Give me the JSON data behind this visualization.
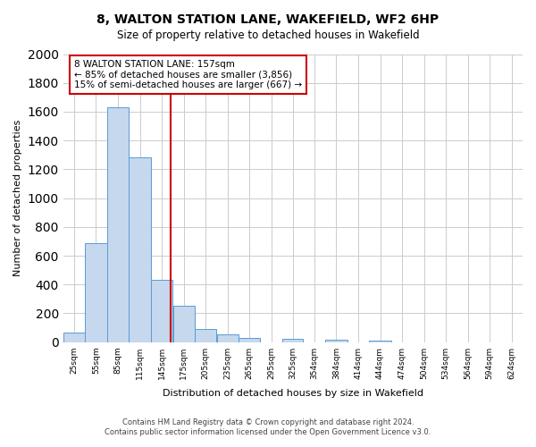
{
  "title": "8, WALTON STATION LANE, WAKEFIELD, WF2 6HP",
  "subtitle": "Size of property relative to detached houses in Wakefield",
  "xlabel": "Distribution of detached houses by size in Wakefield",
  "ylabel": "Number of detached properties",
  "bin_edges": [
    10,
    40,
    70,
    100,
    130,
    160,
    190,
    220,
    250,
    280,
    310,
    339,
    369,
    399,
    429,
    459,
    489,
    519,
    549,
    579,
    609,
    639
  ],
  "bin_labels": [
    "25sqm",
    "55sqm",
    "85sqm",
    "115sqm",
    "145sqm",
    "175sqm",
    "205sqm",
    "235sqm",
    "265sqm",
    "295sqm",
    "325sqm",
    "354sqm",
    "384sqm",
    "414sqm",
    "444sqm",
    "474sqm",
    "504sqm",
    "534sqm",
    "564sqm",
    "594sqm",
    "624sqm"
  ],
  "bar_heights": [
    65,
    690,
    1630,
    1280,
    435,
    250,
    90,
    55,
    30,
    0,
    25,
    0,
    15,
    0,
    12,
    0,
    0,
    0,
    0,
    0,
    0
  ],
  "bar_color": "#c5d8ed",
  "bar_edge_color": "#5b9bd5",
  "grid_color": "#cccccc",
  "ref_line_x": 157,
  "ref_line_color": "#cc0000",
  "annotation_text": "8 WALTON STATION LANE: 157sqm\n← 85% of detached houses are smaller (3,856)\n15% of semi-detached houses are larger (667) →",
  "annotation_box_color": "#ffffff",
  "annotation_box_edge_color": "#cc0000",
  "ylim": [
    0,
    2000
  ],
  "yticks": [
    0,
    200,
    400,
    600,
    800,
    1000,
    1200,
    1400,
    1600,
    1800,
    2000
  ],
  "footer_line1": "Contains HM Land Registry data © Crown copyright and database right 2024.",
  "footer_line2": "Contains public sector information licensed under the Open Government Licence v3.0.",
  "bg_color": "#ffffff",
  "plot_bg_color": "#ffffff"
}
